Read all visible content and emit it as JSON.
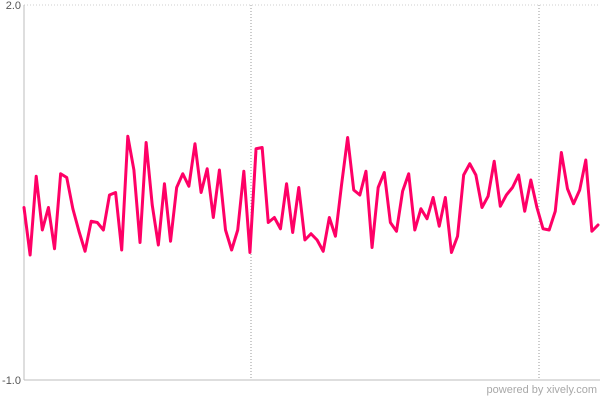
{
  "chart_data": {
    "type": "line",
    "title": "",
    "xlabel": "",
    "ylabel": "",
    "ylim": [
      -1.0,
      2.0
    ],
    "y_tick_labels": [
      "2.0",
      "-1.0"
    ],
    "grid": {
      "vertical_dashed_lines": 2,
      "horizontal_top_dotted": true
    },
    "series": [
      {
        "color": "#ff0066",
        "values": [
          0.38,
          0.0,
          0.63,
          0.2,
          0.38,
          0.05,
          0.65,
          0.62,
          0.37,
          0.19,
          0.03,
          0.27,
          0.26,
          0.2,
          0.48,
          0.5,
          0.04,
          0.95,
          0.68,
          0.1,
          0.9,
          0.4,
          0.08,
          0.57,
          0.11,
          0.54,
          0.65,
          0.55,
          0.89,
          0.5,
          0.69,
          0.3,
          0.68,
          0.2,
          0.04,
          0.2,
          0.67,
          0.02,
          0.85,
          0.86,
          0.26,
          0.3,
          0.21,
          0.57,
          0.18,
          0.54,
          0.12,
          0.17,
          0.12,
          0.03,
          0.3,
          0.15,
          0.56,
          0.94,
          0.52,
          0.48,
          0.67,
          0.06,
          0.54,
          0.66,
          0.26,
          0.19,
          0.51,
          0.65,
          0.2,
          0.37,
          0.29,
          0.46,
          0.23,
          0.46,
          0.02,
          0.15,
          0.64,
          0.73,
          0.64,
          0.38,
          0.47,
          0.75,
          0.39,
          0.48,
          0.54,
          0.64,
          0.35,
          0.6,
          0.38,
          0.21,
          0.2,
          0.35,
          0.82,
          0.53,
          0.41,
          0.52,
          0.76,
          0.19,
          0.24
        ]
      }
    ]
  },
  "footer": {
    "credit": "powered by xively.com"
  }
}
